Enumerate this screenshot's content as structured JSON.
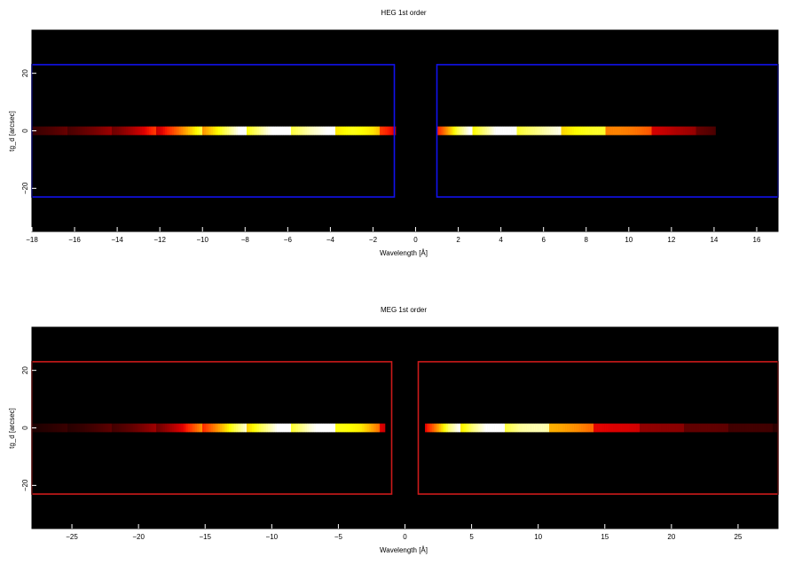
{
  "chart_data": [
    {
      "type": "heatmap",
      "title": "HEG 1st order",
      "xlabel": "Wavelength [Å]",
      "ylabel": "tg_d [arcsec]",
      "xlim": [
        -18,
        17
      ],
      "ylim": [
        -35,
        35
      ],
      "xticks": [
        -18,
        -16,
        -14,
        -12,
        -10,
        -8,
        -6,
        -4,
        -2,
        0,
        2,
        4,
        6,
        8,
        10,
        12,
        14,
        16
      ],
      "yticks": [
        -20,
        0,
        20
      ],
      "background": "#000000",
      "stripe": {
        "tg_d_center": 0,
        "half_width": 1.5,
        "segments": [
          {
            "x": [
              -18,
              -1
            ],
            "profile": [
              0.1,
              0.12,
              0.15,
              0.18,
              0.22,
              0.3,
              0.4,
              0.55,
              0.7,
              0.82,
              0.92,
              0.97,
              0.98,
              0.95,
              0.88,
              0.8,
              0.62,
              0.35
            ]
          },
          {
            "x": [
              1,
              14
            ],
            "profile": [
              0.45,
              0.78,
              0.93,
              1.0,
              0.97,
              0.9,
              0.85,
              0.8,
              0.72,
              0.62,
              0.5,
              0.38,
              0.27,
              0.2,
              0.12
            ]
          }
        ]
      },
      "regions": {
        "color": "#1111ee",
        "boxes": [
          {
            "x": [
              -18,
              -1
            ],
            "y": [
              -23,
              23
            ]
          },
          {
            "x": [
              1,
              17
            ],
            "y": [
              -23,
              23
            ]
          }
        ]
      }
    },
    {
      "type": "heatmap",
      "title": "MEG 1st order",
      "xlabel": "Wavelength [Å]",
      "ylabel": "tg_d [arcsec]",
      "xlim": [
        -28,
        28
      ],
      "ylim": [
        -35,
        35
      ],
      "xticks": [
        -25,
        -20,
        -15,
        -10,
        -5,
        0,
        5,
        10,
        15,
        20,
        25
      ],
      "yticks": [
        -20,
        0,
        20
      ],
      "background": "#000000",
      "stripe": {
        "tg_d_center": 0,
        "half_width": 1.5,
        "segments": [
          {
            "x": [
              -28,
              -1.5
            ],
            "profile": [
              0.05,
              0.07,
              0.09,
              0.12,
              0.16,
              0.22,
              0.35,
              0.55,
              0.75,
              0.88,
              0.95,
              0.98,
              0.93,
              0.7,
              0.35
            ]
          },
          {
            "x": [
              1.5,
              28
            ],
            "profile": [
              0.4,
              0.8,
              0.95,
              1.0,
              0.96,
              0.82,
              0.62,
              0.45,
              0.35,
              0.28,
              0.22,
              0.18,
              0.15,
              0.12,
              0.1,
              0.08
            ]
          }
        ]
      },
      "regions": {
        "color": "#cc1a1a",
        "boxes": [
          {
            "x": [
              -28,
              -1
            ],
            "y": [
              -23,
              23
            ]
          },
          {
            "x": [
              1,
              28
            ],
            "y": [
              -23,
              23
            ]
          }
        ]
      }
    }
  ]
}
